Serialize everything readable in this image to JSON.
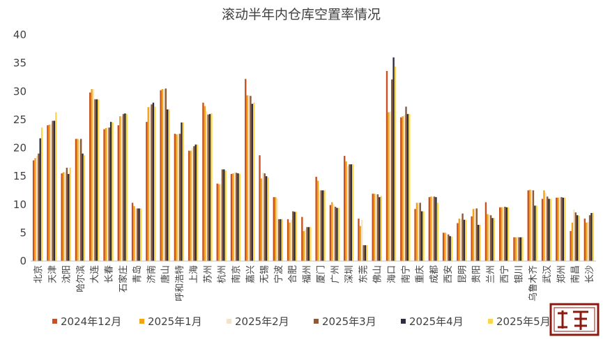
{
  "chart_data": {
    "type": "bar",
    "title": "滚动半年内仓库空置率情况",
    "xlabel": "",
    "ylabel": "",
    "ylim": [
      0,
      40
    ],
    "yticks": [
      0,
      5,
      10,
      15,
      20,
      25,
      30,
      35,
      40
    ],
    "grid": false,
    "legend_position": "bottom",
    "categories": [
      "北京",
      "天津",
      "沈阳",
      "哈尔滨",
      "大连",
      "长春",
      "石家庄",
      "青岛",
      "济南",
      "唐山",
      "呼和浩特",
      "上海",
      "苏州",
      "杭州",
      "南京",
      "嘉兴",
      "无锡",
      "宁波",
      "合肥",
      "福州",
      "厦门",
      "广州",
      "深圳",
      "东莞",
      "佛山",
      "海口",
      "南宁",
      "重庆",
      "成都",
      "西安",
      "昆明",
      "贵阳",
      "兰州",
      "西宁",
      "银川",
      "乌鲁木齐",
      "武汉",
      "郑州",
      "南昌",
      "长沙"
    ],
    "series": [
      {
        "name": "2024年12月",
        "color": "#c8511f",
        "values": [
          17.8,
          24.0,
          15.5,
          21.6,
          29.8,
          23.3,
          24.0,
          10.3,
          24.6,
          30.2,
          22.5,
          19.5,
          28.0,
          13.7,
          15.4,
          32.2,
          18.7,
          11.3,
          7.4,
          7.8,
          14.9,
          9.9,
          18.6,
          7.5,
          11.9,
          33.6,
          25.4,
          9.2,
          11.3,
          5.0,
          6.7,
          7.9,
          10.4,
          9.5,
          4.2,
          12.5,
          11.0,
          11.2,
          5.3,
          7.5
        ]
      },
      {
        "name": "2025年1月",
        "color": "#f0a219",
        "values": [
          18.2,
          24.1,
          15.7,
          21.6,
          30.4,
          23.5,
          25.6,
          9.7,
          27.2,
          30.4,
          22.4,
          19.5,
          27.4,
          13.6,
          15.5,
          29.3,
          14.6,
          11.3,
          6.8,
          5.3,
          14.2,
          10.4,
          17.6,
          6.2,
          11.9,
          26.3,
          25.6,
          10.3,
          11.4,
          5.0,
          7.5,
          9.2,
          8.3,
          9.5,
          4.2,
          12.6,
          12.5,
          11.2,
          6.8,
          6.8
        ]
      },
      {
        "name": "2025年2月",
        "color": "#f4e3c6",
        "values": [
          18.6,
          24.2,
          15.7,
          21.4,
          30.4,
          23.6,
          25.6,
          9.3,
          27.3,
          30.4,
          22.5,
          20.0,
          26.5,
          13.6,
          15.7,
          29.3,
          15.6,
          11.1,
          7.3,
          5.6,
          12.5,
          10.0,
          16.8,
          7.3,
          11.8,
          26.4,
          25.8,
          10.3,
          11.4,
          4.9,
          7.4,
          9.3,
          8.2,
          9.5,
          4.3,
          12.6,
          12.0,
          11.3,
          9.1,
          6.9
        ]
      },
      {
        "name": "2025年3月",
        "color": "#8b5a3c",
        "values": [
          19.0,
          24.8,
          16.5,
          21.6,
          28.6,
          23.6,
          26.0,
          9.3,
          27.7,
          30.5,
          22.5,
          20.3,
          25.9,
          16.2,
          15.6,
          29.2,
          15.5,
          7.4,
          8.8,
          6.0,
          12.5,
          9.6,
          17.1,
          2.8,
          11.8,
          32.1,
          27.3,
          10.3,
          11.4,
          4.7,
          8.4,
          9.3,
          8.1,
          9.6,
          4.2,
          12.5,
          11.4,
          11.3,
          8.6,
          8.1
        ]
      },
      {
        "name": "2025年4月",
        "color": "#2d2d3f",
        "values": [
          21.7,
          24.8,
          15.4,
          19.0,
          28.6,
          24.6,
          26.1,
          9.3,
          28.0,
          26.8,
          24.5,
          20.6,
          26.0,
          16.2,
          15.5,
          27.8,
          15.0,
          7.4,
          8.7,
          6.0,
          12.5,
          9.4,
          17.1,
          2.8,
          11.3,
          36.0,
          26.0,
          8.8,
          11.3,
          4.4,
          7.3,
          6.4,
          7.6,
          9.5,
          4.2,
          9.8,
          11.0,
          11.2,
          8.1,
          8.5
        ]
      },
      {
        "name": "2025年5月",
        "color": "#fbd64a",
        "values": [
          23.6,
          26.3,
          16.5,
          18.7,
          28.6,
          24.5,
          26.0,
          9.3,
          27.3,
          26.8,
          24.5,
          20.6,
          26.1,
          16.0,
          15.4,
          28.0,
          14.8,
          7.4,
          8.7,
          6.0,
          12.5,
          9.4,
          17.1,
          2.8,
          11.5,
          34.4,
          26.0,
          8.8,
          10.3,
          4.3,
          7.3,
          6.4,
          7.6,
          9.5,
          4.2,
          9.8,
          11.0,
          11.2,
          8.0,
          8.5
        ]
      }
    ]
  },
  "stamp": {
    "text": "联易",
    "color": "#8b1a10"
  },
  "watermark": {
    "color": "#e6e6e6"
  }
}
